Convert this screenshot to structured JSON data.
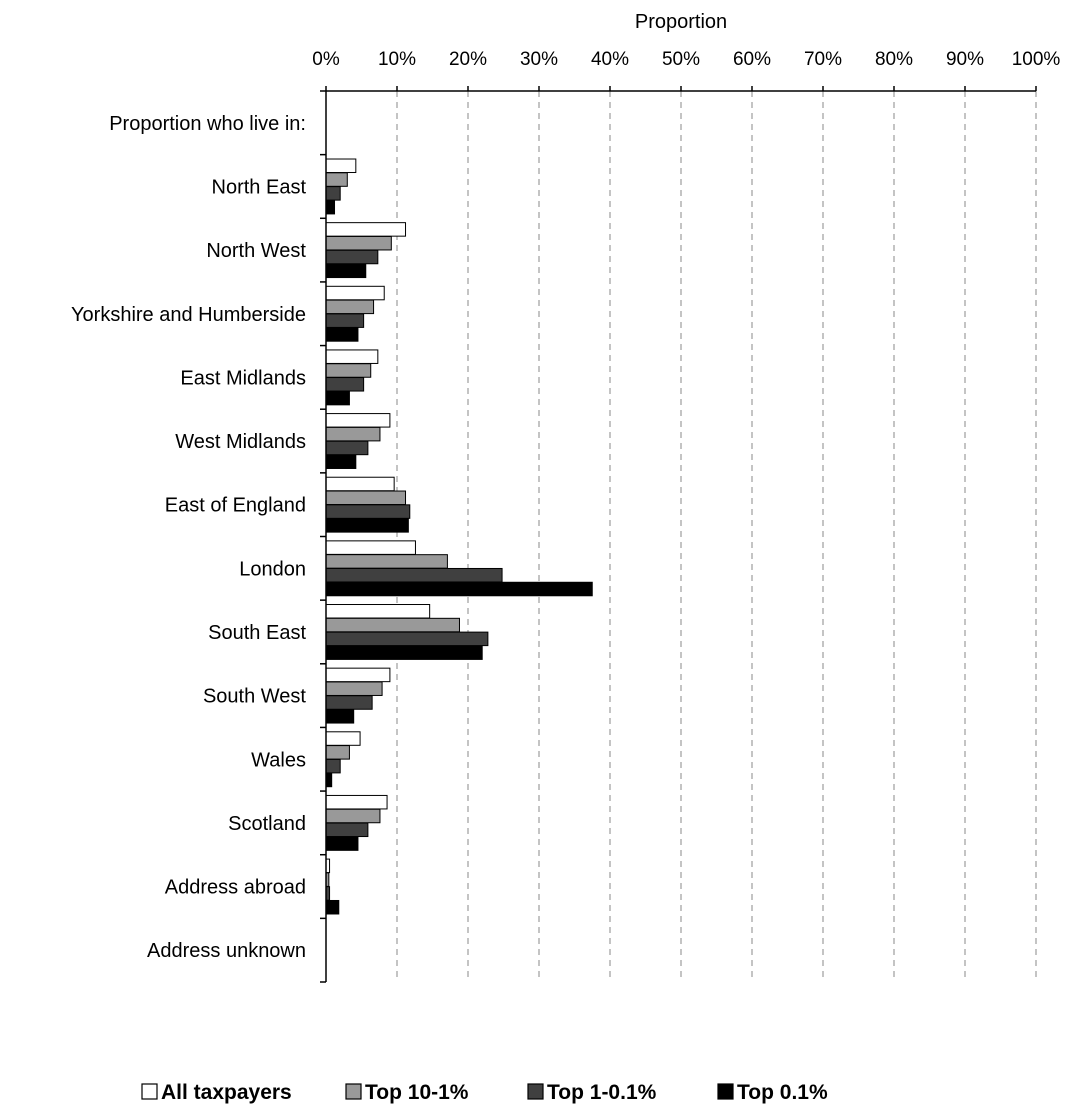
{
  "chart_data": {
    "type": "bar",
    "orientation": "horizontal",
    "title": "",
    "xlabel": "Proportion",
    "ylabel": "",
    "xlim": [
      0,
      100
    ],
    "x_ticks": [
      "0%",
      "10%",
      "20%",
      "30%",
      "40%",
      "50%",
      "60%",
      "70%",
      "80%",
      "90%",
      "100%"
    ],
    "x_tick_values": [
      0,
      10,
      20,
      30,
      40,
      50,
      60,
      70,
      80,
      90,
      100
    ],
    "grid": "vertical dashed",
    "legend_position": "bottom",
    "categories": [
      "Proportion who live in:",
      "North East",
      "North West",
      "Yorkshire and Humberside",
      "East Midlands",
      "West Midlands",
      "East of England",
      "London",
      "South East",
      "South West",
      "Wales",
      "Scotland",
      "Address abroad",
      "Address unknown"
    ],
    "series": [
      {
        "name": "All taxpayers",
        "color": "#ffffff",
        "values": [
          null,
          4.2,
          11.2,
          8.2,
          7.3,
          9.0,
          9.6,
          12.6,
          14.6,
          9.0,
          4.8,
          8.6,
          0.5,
          0
        ]
      },
      {
        "name": "Top 10-1%",
        "color": "#999999",
        "values": [
          null,
          3.0,
          9.2,
          6.7,
          6.3,
          7.6,
          11.2,
          17.1,
          18.8,
          7.9,
          3.3,
          7.6,
          0.4,
          0
        ]
      },
      {
        "name": "Top 1-0.1%",
        "color": "#404040",
        "values": [
          null,
          2.0,
          7.3,
          5.3,
          5.3,
          5.9,
          11.8,
          24.8,
          22.8,
          6.5,
          2.0,
          5.9,
          0.5,
          0
        ]
      },
      {
        "name": "Top 0.1%",
        "color": "#000000",
        "values": [
          null,
          1.2,
          5.6,
          4.5,
          3.3,
          4.2,
          11.6,
          37.5,
          22.0,
          3.9,
          0.8,
          4.5,
          1.8,
          0
        ]
      }
    ]
  }
}
